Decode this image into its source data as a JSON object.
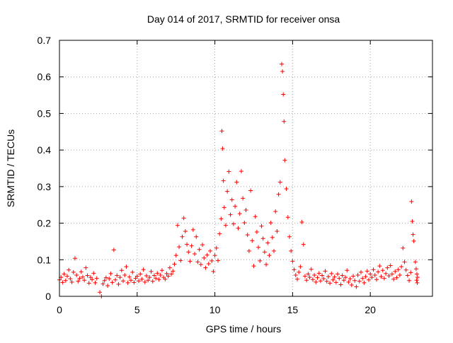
{
  "chart_data": {
    "type": "scatter",
    "title": "Day 014 of 2017, SRMTID for receiver onsa",
    "xlabel": "GPS time / hours",
    "ylabel": "SRMTID / TECUs",
    "xlim": [
      0,
      24
    ],
    "ylim": [
      0,
      0.7
    ],
    "xticks": [
      0,
      5,
      10,
      15,
      20
    ],
    "yticks": [
      0,
      0.1,
      0.2,
      0.3,
      0.4,
      0.5,
      0.6,
      0.7
    ],
    "xtick_labels": [
      "0",
      "5",
      "10",
      "15",
      "20"
    ],
    "ytick_labels": [
      "0",
      "0.1",
      "0.2",
      "0.3",
      "0.4",
      "0.5",
      "0.6",
      "0.7"
    ],
    "grid": true,
    "marker": "+",
    "colors": {
      "points": "#ff0000",
      "grid": "#a0a0a0",
      "axes": "#000000"
    },
    "series": [
      {
        "name": "SRMTID",
        "points": [
          [
            0.0,
            0.045
          ],
          [
            0.1,
            0.052
          ],
          [
            0.2,
            0.038
          ],
          [
            0.3,
            0.061
          ],
          [
            0.4,
            0.043
          ],
          [
            0.5,
            0.055
          ],
          [
            0.6,
            0.072
          ],
          [
            0.7,
            0.048
          ],
          [
            0.8,
            0.039
          ],
          [
            0.9,
            0.066
          ],
          [
            1.0,
            0.104
          ],
          [
            1.1,
            0.058
          ],
          [
            1.2,
            0.041
          ],
          [
            1.3,
            0.049
          ],
          [
            1.4,
            0.067
          ],
          [
            1.5,
            0.053
          ],
          [
            1.6,
            0.044
          ],
          [
            1.7,
            0.078
          ],
          [
            1.8,
            0.057
          ],
          [
            1.9,
            0.036
          ],
          [
            2.0,
            0.052
          ],
          [
            2.1,
            0.046
          ],
          [
            2.2,
            0.063
          ],
          [
            2.3,
            0.037
          ],
          [
            2.4,
            0.049
          ],
          [
            2.6,
            0.011
          ],
          [
            2.7,
            0.0
          ],
          [
            2.8,
            0.034
          ],
          [
            2.9,
            0.043
          ],
          [
            3.0,
            0.051
          ],
          [
            3.1,
            0.029
          ],
          [
            3.2,
            0.048
          ],
          [
            3.3,
            0.062
          ],
          [
            3.4,
            0.038
          ],
          [
            3.5,
            0.127
          ],
          [
            3.6,
            0.045
          ],
          [
            3.7,
            0.057
          ],
          [
            3.8,
            0.033
          ],
          [
            3.9,
            0.052
          ],
          [
            4.0,
            0.071
          ],
          [
            4.1,
            0.042
          ],
          [
            4.2,
            0.058
          ],
          [
            4.3,
            0.081
          ],
          [
            4.4,
            0.037
          ],
          [
            4.5,
            0.053
          ],
          [
            4.6,
            0.044
          ],
          [
            4.7,
            0.066
          ],
          [
            4.8,
            0.038
          ],
          [
            4.9,
            0.049
          ],
          [
            5.0,
            0.055
          ],
          [
            5.1,
            0.042
          ],
          [
            5.2,
            0.061
          ],
          [
            5.3,
            0.047
          ],
          [
            5.4,
            0.073
          ],
          [
            5.5,
            0.039
          ],
          [
            5.6,
            0.056
          ],
          [
            5.7,
            0.044
          ],
          [
            5.8,
            0.052
          ],
          [
            5.9,
            0.068
          ],
          [
            6.0,
            0.041
          ],
          [
            6.1,
            0.057
          ],
          [
            6.2,
            0.049
          ],
          [
            6.3,
            0.063
          ],
          [
            6.4,
            0.046
          ],
          [
            6.5,
            0.058
          ],
          [
            6.6,
            0.071
          ],
          [
            6.7,
            0.052
          ],
          [
            6.8,
            0.047
          ],
          [
            6.9,
            0.062
          ],
          [
            7.0,
            0.055
          ],
          [
            7.1,
            0.078
          ],
          [
            7.2,
            0.061
          ],
          [
            7.3,
            0.069
          ],
          [
            7.4,
            0.088
          ],
          [
            7.5,
            0.112
          ],
          [
            7.6,
            0.194
          ],
          [
            7.7,
            0.135
          ],
          [
            7.8,
            0.098
          ],
          [
            7.9,
            0.163
          ],
          [
            8.0,
            0.214
          ],
          [
            8.1,
            0.178
          ],
          [
            8.2,
            0.142
          ],
          [
            8.3,
            0.121
          ],
          [
            8.4,
            0.096
          ],
          [
            8.5,
            0.138
          ],
          [
            8.6,
            0.182
          ],
          [
            8.7,
            0.116
          ],
          [
            8.8,
            0.163
          ],
          [
            8.9,
            0.094
          ],
          [
            9.0,
            0.128
          ],
          [
            9.1,
            0.087
          ],
          [
            9.2,
            0.141
          ],
          [
            9.3,
            0.105
          ],
          [
            9.4,
            0.078
          ],
          [
            9.5,
            0.113
          ],
          [
            9.6,
            0.089
          ],
          [
            9.7,
            0.124
          ],
          [
            9.8,
            0.097
          ],
          [
            9.9,
            0.068
          ],
          [
            10.0,
            0.112
          ],
          [
            10.1,
            0.132
          ],
          [
            10.2,
            0.098
          ],
          [
            10.3,
            0.171
          ],
          [
            10.4,
            0.212
          ],
          [
            10.45,
            0.452
          ],
          [
            10.5,
            0.404
          ],
          [
            10.55,
            0.316
          ],
          [
            10.6,
            0.243
          ],
          [
            10.7,
            0.194
          ],
          [
            10.8,
            0.287
          ],
          [
            10.9,
            0.341
          ],
          [
            11.0,
            0.223
          ],
          [
            11.1,
            0.264
          ],
          [
            11.2,
            0.198
          ],
          [
            11.3,
            0.246
          ],
          [
            11.4,
            0.312
          ],
          [
            11.5,
            0.186
          ],
          [
            11.6,
            0.226
          ],
          [
            11.7,
            0.342
          ],
          [
            11.8,
            0.268
          ],
          [
            11.9,
            0.201
          ],
          [
            12.0,
            0.236
          ],
          [
            12.1,
            0.168
          ],
          [
            12.2,
            0.124
          ],
          [
            12.3,
            0.289
          ],
          [
            12.4,
            0.152
          ],
          [
            12.5,
            0.083
          ],
          [
            12.6,
            0.218
          ],
          [
            12.7,
            0.176
          ],
          [
            12.8,
            0.134
          ],
          [
            12.9,
            0.097
          ],
          [
            13.0,
            0.192
          ],
          [
            13.1,
            0.158
          ],
          [
            13.2,
            0.121
          ],
          [
            13.3,
            0.087
          ],
          [
            13.4,
            0.146
          ],
          [
            13.5,
            0.112
          ],
          [
            13.6,
            0.201
          ],
          [
            13.7,
            0.161
          ],
          [
            13.8,
            0.124
          ],
          [
            13.9,
            0.232
          ],
          [
            14.0,
            0.178
          ],
          [
            14.1,
            0.279
          ],
          [
            14.2,
            0.312
          ],
          [
            14.3,
            0.635
          ],
          [
            14.35,
            0.615
          ],
          [
            14.4,
            0.552
          ],
          [
            14.45,
            0.478
          ],
          [
            14.5,
            0.372
          ],
          [
            14.6,
            0.294
          ],
          [
            14.7,
            0.216
          ],
          [
            14.8,
            0.163
          ],
          [
            14.9,
            0.124
          ],
          [
            15.0,
            0.096
          ],
          [
            15.1,
            0.073
          ],
          [
            15.2,
            0.058
          ],
          [
            15.3,
            0.047
          ],
          [
            15.4,
            0.066
          ],
          [
            15.5,
            0.081
          ],
          [
            15.6,
            0.203
          ],
          [
            15.7,
            0.142
          ],
          [
            15.8,
            0.055
          ],
          [
            15.9,
            0.044
          ],
          [
            16.0,
            0.061
          ],
          [
            16.1,
            0.052
          ],
          [
            16.2,
            0.074
          ],
          [
            16.3,
            0.046
          ],
          [
            16.4,
            0.058
          ],
          [
            16.5,
            0.039
          ],
          [
            16.6,
            0.051
          ],
          [
            16.7,
            0.063
          ],
          [
            16.8,
            0.042
          ],
          [
            16.9,
            0.057
          ],
          [
            17.0,
            0.048
          ],
          [
            17.1,
            0.069
          ],
          [
            17.2,
            0.041
          ],
          [
            17.3,
            0.054
          ],
          [
            17.4,
            0.036
          ],
          [
            17.5,
            0.062
          ],
          [
            17.6,
            0.045
          ],
          [
            17.7,
            0.053
          ],
          [
            17.8,
            0.038
          ],
          [
            17.9,
            0.061
          ],
          [
            18.0,
            0.049
          ],
          [
            18.1,
            0.032
          ],
          [
            18.2,
            0.057
          ],
          [
            18.3,
            0.044
          ],
          [
            18.4,
            0.052
          ],
          [
            18.5,
            0.071
          ],
          [
            18.6,
            0.039
          ],
          [
            18.7,
            0.048
          ],
          [
            18.8,
            0.031
          ],
          [
            18.9,
            0.055
          ],
          [
            19.0,
            0.043
          ],
          [
            19.1,
            0.026
          ],
          [
            19.2,
            0.058
          ],
          [
            19.3,
            0.041
          ],
          [
            19.4,
            0.066
          ],
          [
            19.5,
            0.049
          ],
          [
            19.6,
            0.037
          ],
          [
            19.7,
            0.054
          ],
          [
            19.8,
            0.069
          ],
          [
            19.9,
            0.045
          ],
          [
            20.0,
            0.061
          ],
          [
            20.1,
            0.052
          ],
          [
            20.2,
            0.073
          ],
          [
            20.3,
            0.058
          ],
          [
            20.4,
            0.046
          ],
          [
            20.5,
            0.067
          ],
          [
            20.6,
            0.083
          ],
          [
            20.7,
            0.054
          ],
          [
            20.8,
            0.071
          ],
          [
            20.9,
            0.049
          ],
          [
            21.0,
            0.062
          ],
          [
            21.1,
            0.078
          ],
          [
            21.2,
            0.056
          ],
          [
            21.3,
            0.084
          ],
          [
            21.4,
            0.061
          ],
          [
            21.5,
            0.047
          ],
          [
            21.6,
            0.068
          ],
          [
            21.7,
            0.051
          ],
          [
            21.8,
            0.073
          ],
          [
            21.9,
            0.058
          ],
          [
            22.0,
            0.081
          ],
          [
            22.1,
            0.132
          ],
          [
            22.2,
            0.094
          ],
          [
            22.3,
            0.072
          ],
          [
            22.4,
            0.057
          ],
          [
            22.5,
            0.043
          ],
          [
            22.6,
            0.065
          ],
          [
            22.65,
            0.259
          ],
          [
            22.7,
            0.205
          ],
          [
            22.75,
            0.169
          ],
          [
            22.8,
            0.151
          ],
          [
            22.9,
            0.094
          ],
          [
            22.95,
            0.075
          ],
          [
            22.98,
            0.044
          ],
          [
            23.0,
            0.061
          ],
          [
            23.02,
            0.037
          ],
          [
            23.04,
            0.052
          ]
        ]
      }
    ]
  }
}
